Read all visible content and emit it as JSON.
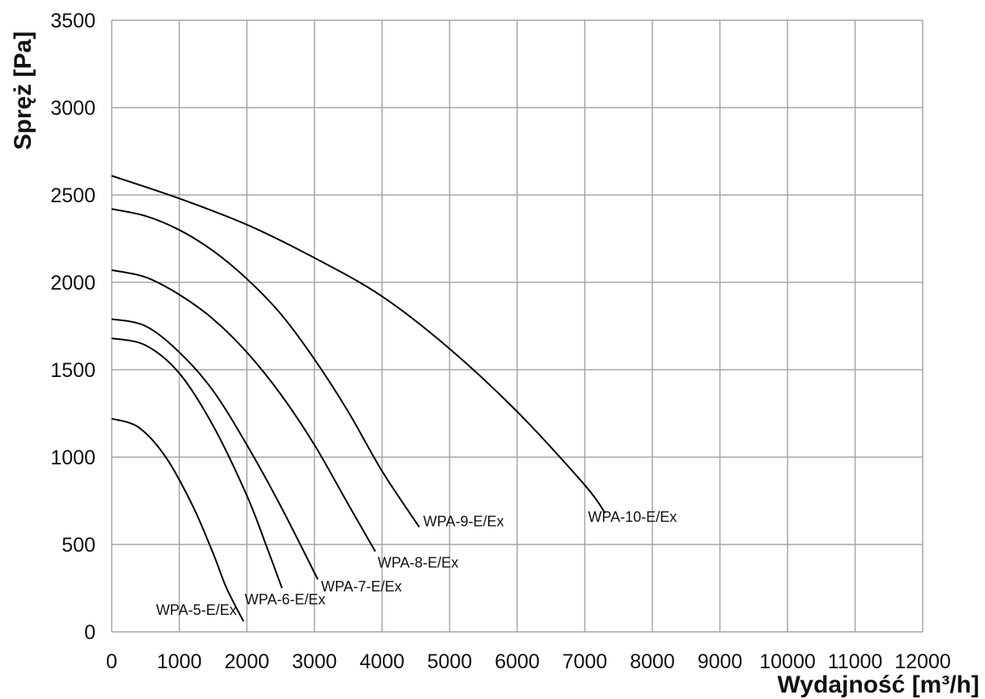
{
  "chart_data": {
    "type": "line",
    "title": "",
    "xlabel": "Wydajność [m³/h]",
    "ylabel": "Spręż [Pa]",
    "xlim": [
      0,
      12000
    ],
    "ylim": [
      0,
      3500
    ],
    "x_ticks": [
      0,
      1000,
      2000,
      3000,
      4000,
      5000,
      6000,
      7000,
      8000,
      9000,
      10000,
      11000,
      12000
    ],
    "y_ticks": [
      0,
      500,
      1000,
      1500,
      2000,
      2500,
      3000,
      3500
    ],
    "grid": true,
    "legend": "none (series labelled at line ends)",
    "series": [
      {
        "name": "WPA-5-E/Ex",
        "x": [
          0,
          400,
          800,
          1200,
          1500,
          1700,
          1950
        ],
        "y": [
          1220,
          1170,
          1000,
          720,
          450,
          250,
          60
        ]
      },
      {
        "name": "WPA-6-E/Ex",
        "x": [
          0,
          500,
          1000,
          1500,
          2000,
          2300,
          2520
        ],
        "y": [
          1680,
          1640,
          1480,
          1180,
          780,
          480,
          250
        ]
      },
      {
        "name": "WPA-7-E/Ex",
        "x": [
          0,
          500,
          1000,
          1500,
          2000,
          2500,
          3050
        ],
        "y": [
          1790,
          1750,
          1600,
          1380,
          1070,
          720,
          300
        ]
      },
      {
        "name": "WPA-8-E/Ex",
        "x": [
          0,
          500,
          1000,
          1500,
          2000,
          2500,
          3000,
          3500,
          3900
        ],
        "y": [
          2070,
          2030,
          1930,
          1790,
          1600,
          1360,
          1070,
          730,
          460
        ]
      },
      {
        "name": "WPA-9-E/Ex",
        "x": [
          0,
          500,
          1000,
          1500,
          2000,
          2500,
          3000,
          3500,
          4000,
          4550
        ],
        "y": [
          2420,
          2380,
          2300,
          2180,
          2020,
          1820,
          1560,
          1260,
          920,
          600
        ]
      },
      {
        "name": "WPA-10-E/Ex",
        "x": [
          0,
          1000,
          2000,
          3000,
          4000,
          5000,
          6000,
          7000,
          7300
        ],
        "y": [
          2610,
          2480,
          2330,
          2140,
          1920,
          1620,
          1260,
          840,
          680
        ]
      }
    ]
  }
}
